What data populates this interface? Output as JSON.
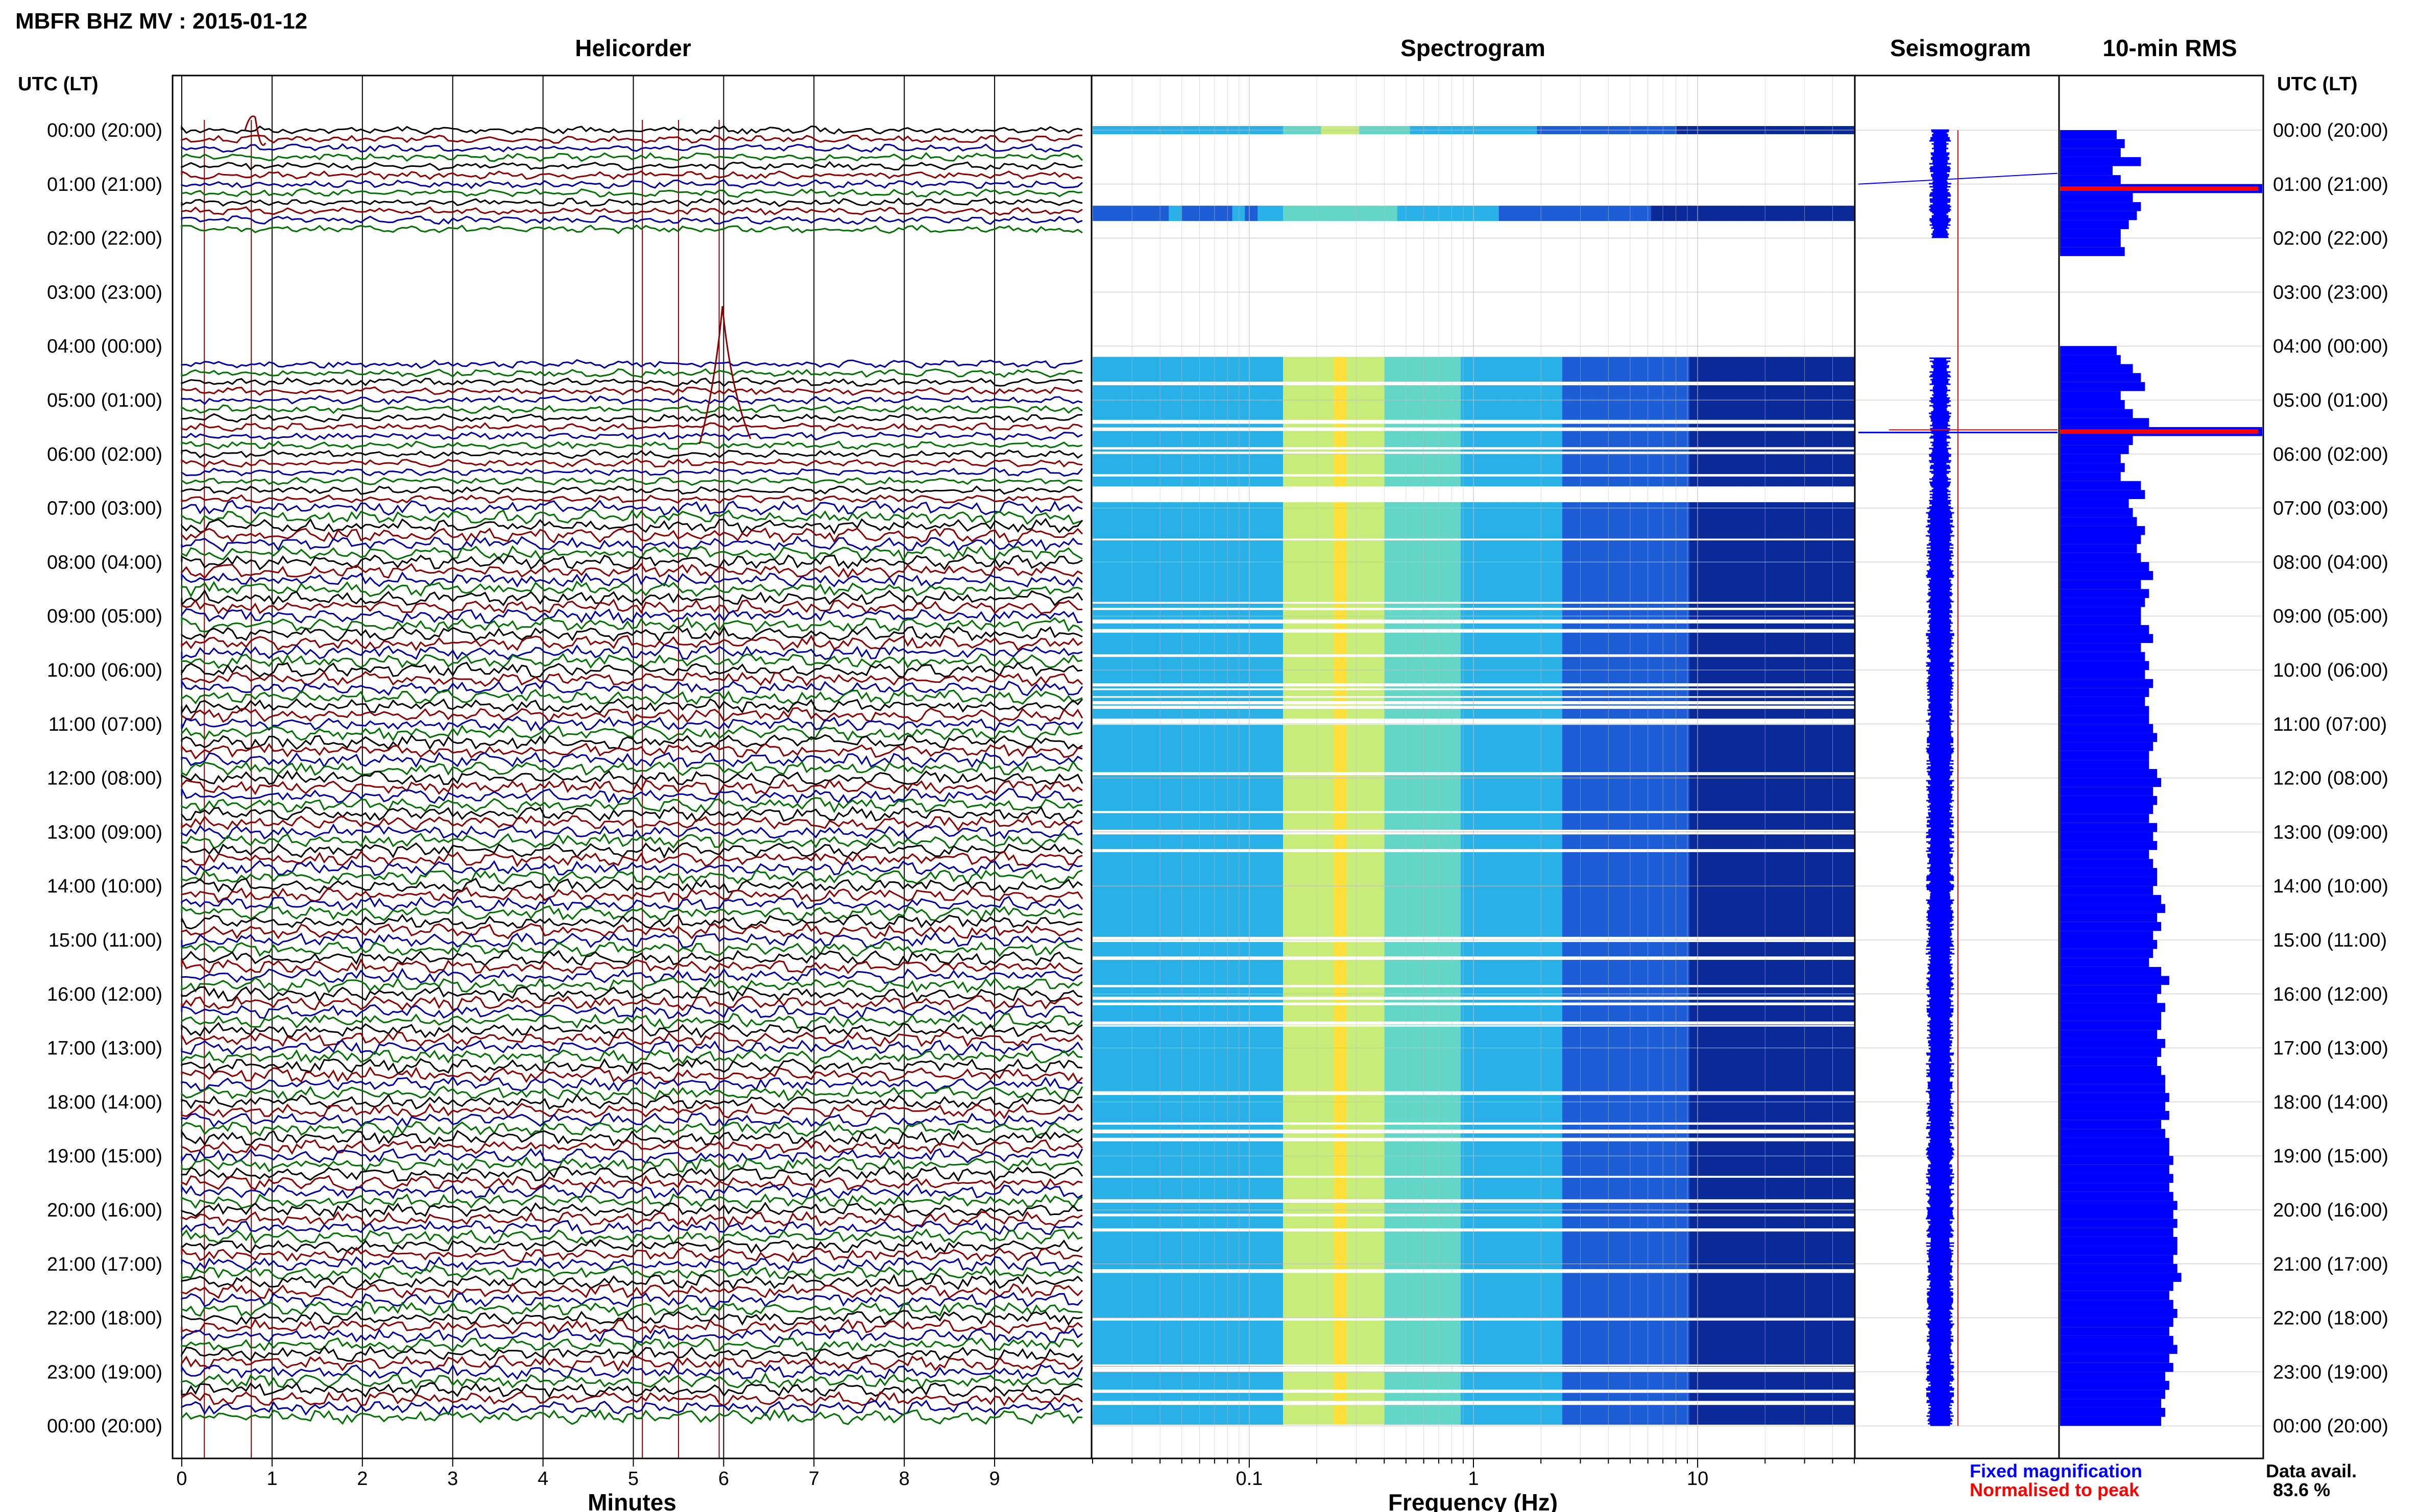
{
  "header": {
    "title": "MBFR BHZ MV : 2015-01-12",
    "time_label": "UTC (LT)"
  },
  "panels": {
    "helicorder": "Helicorder",
    "spectrogram": "Spectrogram",
    "seismogram": "Seismogram",
    "rms": "10-min RMS"
  },
  "footer": {
    "legend_fixed": "Fixed magnification",
    "legend_normalised": "Normalised to peak",
    "data_avail_label": "Data avail.",
    "data_avail_value": "83.6 %"
  },
  "colors": {
    "trace_cycle": [
      "#000000",
      "#8b0000",
      "#0000a0",
      "#007000"
    ],
    "fixed": "#0000ff",
    "normalised": "#ff0000",
    "grid": "#c0c0c0"
  },
  "chart_data": [
    {
      "type": "line",
      "panel": "helicorder",
      "title": "Helicorder",
      "xlabel": "Minutes",
      "xlim": [
        0,
        10
      ],
      "xticks": [
        "0",
        "1",
        "2",
        "3",
        "4",
        "5",
        "6",
        "7",
        "8",
        "9"
      ],
      "y_tick_labels": [
        "00:00 (20:00)",
        "01:00 (21:00)",
        "02:00 (22:00)",
        "03:00 (23:00)",
        "04:00 (00:00)",
        "05:00 (01:00)",
        "06:00 (02:00)",
        "07:00 (03:00)",
        "08:00 (04:00)",
        "09:00 (05:00)",
        "10:00 (06:00)",
        "11:00 (07:00)",
        "12:00 (08:00)",
        "13:00 (09:00)",
        "14:00 (10:00)",
        "15:00 (11:00)",
        "16:00 (12:00)",
        "17:00 (13:00)",
        "18:00 (14:00)",
        "19:00 (15:00)",
        "20:00 (16:00)",
        "21:00 (17:00)",
        "22:00 (18:00)",
        "23:00 (19:00)",
        "00:00 (20:00)"
      ],
      "rows_per_hour": 6,
      "data_gap_hours_utc": [
        2.0,
        4.2
      ]
    },
    {
      "type": "heatmap",
      "panel": "spectrogram",
      "title": "Spectrogram",
      "xlabel": "Frequency (Hz)",
      "x_scale": "log",
      "xlim": [
        0.02,
        50
      ],
      "xticks": [
        0.1,
        1,
        10
      ],
      "xtick_labels": [
        "0.1",
        "1",
        "10"
      ]
    },
    {
      "type": "line",
      "panel": "seismogram",
      "title": "Seismogram"
    },
    {
      "type": "bar",
      "panel": "rms",
      "title": "10-min RMS",
      "orientation": "horizontal",
      "bar_interval_min": 10,
      "values": [
        0.28,
        0.32,
        0.3,
        0.4,
        0.26,
        0.3,
        1.0,
        0.36,
        0.4,
        0.38,
        0.34,
        0.3,
        0.3,
        0.32,
        0.0,
        0.0,
        0.0,
        0.0,
        0.0,
        0.0,
        0.0,
        0.0,
        0.0,
        0.0,
        0.28,
        0.3,
        0.36,
        0.4,
        0.42,
        0.3,
        0.32,
        0.36,
        0.44,
        1.0,
        0.36,
        0.34,
        0.3,
        0.32,
        0.3,
        0.4,
        0.42,
        0.34,
        0.36,
        0.38,
        0.42,
        0.4,
        0.38,
        0.4,
        0.44,
        0.46,
        0.4,
        0.44,
        0.42,
        0.4,
        0.4,
        0.44,
        0.46,
        0.4,
        0.42,
        0.44,
        0.42,
        0.46,
        0.44,
        0.42,
        0.44,
        0.44,
        0.46,
        0.48,
        0.46,
        0.44,
        0.44,
        0.48,
        0.5,
        0.46,
        0.48,
        0.46,
        0.44,
        0.48,
        0.46,
        0.48,
        0.44,
        0.46,
        0.48,
        0.48,
        0.46,
        0.5,
        0.52,
        0.48,
        0.5,
        0.46,
        0.48,
        0.46,
        0.44,
        0.5,
        0.54,
        0.5,
        0.48,
        0.52,
        0.5,
        0.5,
        0.48,
        0.52,
        0.5,
        0.48,
        0.5,
        0.52,
        0.52,
        0.54,
        0.52,
        0.54,
        0.5,
        0.52,
        0.54,
        0.54,
        0.56,
        0.54,
        0.56,
        0.54,
        0.56,
        0.58,
        0.56,
        0.58,
        0.56,
        0.58,
        0.58,
        0.56,
        0.58,
        0.6,
        0.56,
        0.54,
        0.56,
        0.58,
        0.56,
        0.54,
        0.56,
        0.58,
        0.54,
        0.56,
        0.52,
        0.54,
        0.52,
        0.5,
        0.52,
        0.5
      ],
      "normalised_peak_bar_indices": [
        6,
        33
      ]
    }
  ]
}
